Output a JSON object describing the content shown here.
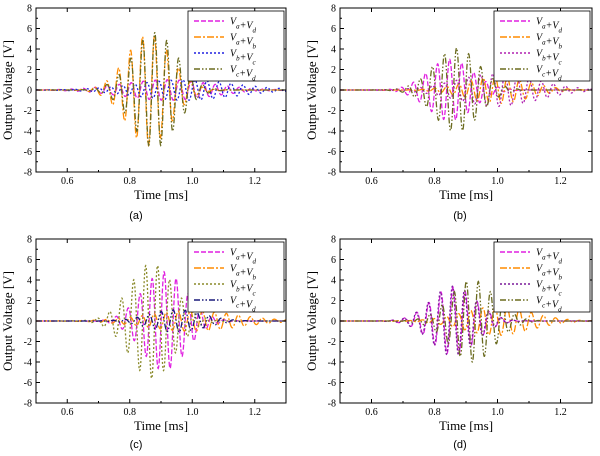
{
  "chart_data": [
    {
      "id": "a",
      "type": "line",
      "panel_label": "(a)",
      "xlabel": "Time [ms]",
      "ylabel": "Output Voltage [V]",
      "xlim": [
        0.5,
        1.3
      ],
      "ylim": [
        -8,
        8
      ],
      "xticks": [
        0.6,
        0.8,
        1.0,
        1.2
      ],
      "yticks": [
        -8,
        -6,
        -4,
        -2,
        0,
        2,
        4,
        6,
        8
      ],
      "grid": false,
      "legend_position": "top-right",
      "series": [
        {
          "name": "Va+Vd",
          "base": "V",
          "sub1": "a",
          "plus": "+",
          "sub2": "d",
          "color": "#e020e0",
          "dash": "5,2",
          "amplitude": 1.0,
          "center": 0.92,
          "width": 0.2,
          "freq": 26.0,
          "phase": 0.0
        },
        {
          "name": "Va+Vb",
          "base": "V",
          "sub1": "a",
          "plus": "+",
          "sub2": "b",
          "color": "#ff8c00",
          "dash": "7,2,2,2",
          "amplitude": 5.4,
          "center": 0.86,
          "width": 0.1,
          "freq": 26.0,
          "phase": 3.14
        },
        {
          "name": "Vb+Vc",
          "base": "V",
          "sub1": "b",
          "plus": "+",
          "sub2": "c",
          "color": "#2020e0",
          "dash": "2,2",
          "amplitude": 1.0,
          "center": 0.98,
          "width": 0.22,
          "freq": 26.0,
          "phase": 1.57
        },
        {
          "name": "Vc+Vd",
          "base": "V",
          "sub1": "c",
          "plus": "+",
          "sub2": "d",
          "color": "#6b6b1f",
          "dash": "6,2,1.5,2,1.5,2",
          "amplitude": 5.6,
          "center": 0.88,
          "width": 0.1,
          "freq": 26.0,
          "phase": 0.0
        }
      ]
    },
    {
      "id": "b",
      "type": "line",
      "panel_label": "(b)",
      "xlabel": "Time [ms]",
      "ylabel": "Output Voltage [V]",
      "xlim": [
        0.5,
        1.3
      ],
      "ylim": [
        -8,
        8
      ],
      "xticks": [
        0.6,
        0.8,
        1.0,
        1.2
      ],
      "yticks": [
        -8,
        -6,
        -4,
        -2,
        0,
        2,
        4,
        6,
        8
      ],
      "grid": false,
      "legend_position": "top-right",
      "series": [
        {
          "name": "Va+Vd",
          "base": "V",
          "sub1": "a",
          "plus": "+",
          "sub2": "d",
          "color": "#e020e0",
          "dash": "5,2",
          "amplitude": 3.0,
          "center": 0.85,
          "width": 0.1,
          "freq": 26.0,
          "phase": 0.3
        },
        {
          "name": "Va+Vb",
          "base": "V",
          "sub1": "a",
          "plus": "+",
          "sub2": "b",
          "color": "#ff8c00",
          "dash": "7,2,2,2",
          "amplitude": 1.3,
          "center": 1.0,
          "width": 0.14,
          "freq": 26.0,
          "phase": 1.2
        },
        {
          "name": "Vb+Vc",
          "base": "V",
          "sub1": "b",
          "plus": "+",
          "sub2": "c",
          "color": "#b020b0",
          "dash": "2,2",
          "amplitude": 1.6,
          "center": 1.0,
          "width": 0.18,
          "freq": 26.0,
          "phase": 2.4
        },
        {
          "name": "Vc+Vd",
          "base": "V",
          "sub1": "c",
          "plus": "+",
          "sub2": "d",
          "color": "#6b6b1f",
          "dash": "6,2,1.5,2,1.5,2",
          "amplitude": 4.1,
          "center": 0.87,
          "width": 0.1,
          "freq": 26.0,
          "phase": 0.0
        }
      ]
    },
    {
      "id": "c",
      "type": "line",
      "panel_label": "(c)",
      "xlabel": "Time [ms]",
      "ylabel": "Output Voltage [V]",
      "xlim": [
        0.5,
        1.3
      ],
      "ylim": [
        -8,
        8
      ],
      "xticks": [
        0.6,
        0.8,
        1.0,
        1.2
      ],
      "yticks": [
        -8,
        -6,
        -4,
        -2,
        0,
        2,
        4,
        6,
        8
      ],
      "grid": false,
      "legend_position": "top-right",
      "series": [
        {
          "name": "Va+Vd",
          "base": "V",
          "sub1": "a",
          "plus": "+",
          "sub2": "d",
          "color": "#e020e0",
          "dash": "5,2",
          "amplitude": 4.8,
          "center": 0.91,
          "width": 0.1,
          "freq": 26.0,
          "phase": 0.0
        },
        {
          "name": "Va+Vb",
          "base": "V",
          "sub1": "a",
          "plus": "+",
          "sub2": "b",
          "color": "#ff8c00",
          "dash": "7,2,2,2",
          "amplitude": 1.0,
          "center": 1.0,
          "width": 0.2,
          "freq": 26.0,
          "phase": 1.0
        },
        {
          "name": "Vb+Vc",
          "base": "V",
          "sub1": "b",
          "plus": "+",
          "sub2": "c",
          "color": "#8a8a2a",
          "dash": "2,2",
          "amplitude": 5.6,
          "center": 0.87,
          "width": 0.1,
          "freq": 26.0,
          "phase": 3.14
        },
        {
          "name": "Vc+Vd",
          "base": "V",
          "sub1": "c",
          "plus": "+",
          "sub2": "d",
          "color": "#1a1a7a",
          "dash": "6,2,1.5,2,1.5,2",
          "amplitude": 1.1,
          "center": 0.95,
          "width": 0.12,
          "freq": 26.0,
          "phase": 1.8
        }
      ]
    },
    {
      "id": "d",
      "type": "line",
      "panel_label": "(d)",
      "xlabel": "Time [ms]",
      "ylabel": "Output Voltage [V]",
      "xlim": [
        0.5,
        1.3
      ],
      "ylim": [
        -8,
        8
      ],
      "xticks": [
        0.6,
        0.8,
        1.0,
        1.2
      ],
      "yticks": [
        -8,
        -6,
        -4,
        -2,
        0,
        2,
        4,
        6,
        8
      ],
      "grid": false,
      "legend_position": "top-right",
      "series": [
        {
          "name": "Va+Vd",
          "base": "V",
          "sub1": "a",
          "plus": "+",
          "sub2": "d",
          "color": "#e020e0",
          "dash": "5,2",
          "amplitude": 3.3,
          "center": 0.86,
          "width": 0.1,
          "freq": 26.0,
          "phase": 0.2
        },
        {
          "name": "Va+Vb",
          "base": "V",
          "sub1": "a",
          "plus": "+",
          "sub2": "b",
          "color": "#ff8c00",
          "dash": "7,2,2,2",
          "amplitude": 1.4,
          "center": 1.0,
          "width": 0.15,
          "freq": 26.0,
          "phase": 1.3
        },
        {
          "name": "Vb+Vc",
          "base": "V",
          "sub1": "b",
          "plus": "+",
          "sub2": "c",
          "color": "#7a1a9a",
          "dash": "2,2",
          "amplitude": 3.4,
          "center": 0.86,
          "width": 0.1,
          "freq": 26.0,
          "phase": 0.5
        },
        {
          "name": "Vc+Vd",
          "base": "V",
          "sub1": "c",
          "plus": "+",
          "sub2": "d",
          "color": "#6b6b1f",
          "dash": "6,2,1.5,2,1.5,2",
          "amplitude": 4.0,
          "center": 0.92,
          "width": 0.1,
          "freq": 26.0,
          "phase": 3.14
        }
      ]
    }
  ]
}
